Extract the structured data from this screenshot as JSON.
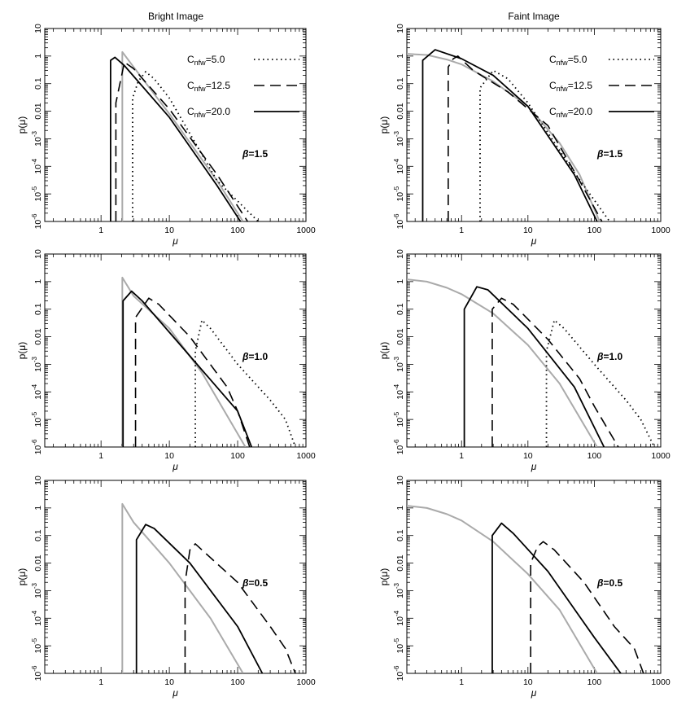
{
  "figure": {
    "column_titles": [
      "Bright Image",
      "Faint Image"
    ]
  },
  "legend": {
    "entries": [
      {
        "series": "c5",
        "prefix": "C",
        "subscript": "nfw",
        "value": "=5.0"
      },
      {
        "series": "c12",
        "prefix": "C",
        "subscript": "nfw",
        "value": "=12.5"
      },
      {
        "series": "c20",
        "prefix": "C",
        "subscript": "nfw",
        "value": "=20.0"
      }
    ]
  },
  "styles": {
    "c5": {
      "color": "#000000",
      "dash": "1.5,4",
      "width": 1.8
    },
    "c12": {
      "color": "#000000",
      "dash": "13,7",
      "width": 1.6
    },
    "c20": {
      "color": "#000000",
      "dash": "",
      "width": 1.8
    },
    "ref": {
      "color": "#aaaaaa",
      "dash": "",
      "width": 2
    }
  },
  "chart_data": [
    {
      "type": "line",
      "id": "bright-beta-1.5",
      "column": "Bright Image",
      "xlabel": "μ",
      "ylabel": "p(μ)",
      "xscale": "log",
      "yscale": "log",
      "xlim": [
        0.15,
        1000
      ],
      "ylim": [
        1e-06,
        10
      ],
      "xticks": [
        "1",
        "10",
        "100",
        "1000"
      ],
      "yticks": [
        "10",
        "1",
        "0.1",
        "0.01",
        "10^-3",
        "10^-4",
        "10^-5",
        "10^-6"
      ],
      "annotation": {
        "symbol": "β",
        "text": "=1.5"
      },
      "show_legend": true,
      "series": [
        {
          "name": "C_nfw=5.0",
          "style": "c5",
          "points": [
            [
              2.9,
              1e-06
            ],
            [
              2.9,
              0.03
            ],
            [
              3.5,
              0.12
            ],
            [
              4.5,
              0.27
            ],
            [
              6,
              0.15
            ],
            [
              10,
              0.03
            ],
            [
              50,
              3e-05
            ],
            [
              200,
              1e-06
            ]
          ]
        },
        {
          "name": "C_nfw=12.5",
          "style": "c12",
          "points": [
            [
              1.65,
              1e-06
            ],
            [
              1.65,
              0.02
            ],
            [
              2.2,
              0.6
            ],
            [
              3,
              0.35
            ],
            [
              10,
              0.012
            ],
            [
              50,
              5e-05
            ],
            [
              140,
              1e-06
            ]
          ]
        },
        {
          "name": "C_nfw=20.0",
          "style": "c20",
          "points": [
            [
              1.38,
              1e-06
            ],
            [
              1.38,
              0.7
            ],
            [
              1.6,
              0.9
            ],
            [
              2.2,
              0.45
            ],
            [
              10,
              0.006
            ],
            [
              50,
              2e-05
            ],
            [
              110,
              1e-06
            ]
          ]
        },
        {
          "name": "reference",
          "style": "ref",
          "points": [
            [
              2.05,
              1e-06
            ],
            [
              2.05,
              1.4
            ],
            [
              3,
              0.4
            ],
            [
              10,
              0.008
            ],
            [
              50,
              3e-05
            ],
            [
              120,
              1e-06
            ]
          ]
        }
      ]
    },
    {
      "type": "line",
      "id": "faint-beta-1.5",
      "column": "Faint Image",
      "xlabel": "μ",
      "ylabel": "p(μ)",
      "xscale": "log",
      "yscale": "log",
      "xlim": [
        0.15,
        1000
      ],
      "ylim": [
        1e-06,
        10
      ],
      "xticks": [
        "1",
        "10",
        "100",
        "1000"
      ],
      "yticks": [
        "10",
        "1",
        "0.1",
        "0.01",
        "10^-3",
        "10^-4",
        "10^-5",
        "10^-6"
      ],
      "annotation": {
        "symbol": "β",
        "text": "=1.5"
      },
      "show_legend": true,
      "series": [
        {
          "name": "C_nfw=5.0",
          "style": "c5",
          "points": [
            [
              1.9,
              1e-06
            ],
            [
              1.9,
              0.07
            ],
            [
              3,
              0.3
            ],
            [
              5,
              0.15
            ],
            [
              10,
              0.02
            ],
            [
              50,
              6e-05
            ],
            [
              170,
              1e-06
            ]
          ]
        },
        {
          "name": "C_nfw=12.5",
          "style": "c12",
          "points": [
            [
              0.63,
              1e-06
            ],
            [
              0.63,
              0.4
            ],
            [
              0.75,
              0.8
            ],
            [
              0.88,
              1.0
            ],
            [
              1.5,
              0.3
            ],
            [
              5,
              0.05
            ],
            [
              20,
              0.003
            ],
            [
              60,
              3e-05
            ],
            [
              130,
              1e-06
            ]
          ]
        },
        {
          "name": "C_nfw=20.0",
          "style": "c20",
          "points": [
            [
              0.26,
              1e-06
            ],
            [
              0.26,
              0.7
            ],
            [
              0.4,
              1.7
            ],
            [
              1,
              0.8
            ],
            [
              3,
              0.2
            ],
            [
              10,
              0.015
            ],
            [
              50,
              5e-05
            ],
            [
              110,
              1e-06
            ]
          ]
        },
        {
          "name": "reference",
          "style": "ref",
          "points": [
            [
              0.15,
              1.2
            ],
            [
              0.3,
              1.1
            ],
            [
              0.6,
              0.75
            ],
            [
              1,
              0.5
            ],
            [
              3,
              0.12
            ],
            [
              10,
              0.015
            ],
            [
              30,
              0.0007
            ],
            [
              60,
              5e-05
            ],
            [
              120,
              1e-06
            ]
          ]
        }
      ]
    },
    {
      "type": "line",
      "id": "bright-beta-1.0",
      "column": "Bright Image",
      "xlabel": "μ",
      "ylabel": "p(μ)",
      "xscale": "log",
      "yscale": "log",
      "xlim": [
        0.15,
        1000
      ],
      "ylim": [
        1e-06,
        10
      ],
      "xticks": [
        "1",
        "10",
        "100",
        "1000"
      ],
      "yticks": [
        "10",
        "1",
        "0.1",
        "0.01",
        "10^-3",
        "10^-4",
        "10^-5",
        "10^-6"
      ],
      "annotation": {
        "symbol": "β",
        "text": "=1.0"
      },
      "show_legend": false,
      "series": [
        {
          "name": "C_nfw=5.0",
          "style": "c5",
          "points": [
            [
              24,
              1e-06
            ],
            [
              24,
              0.003
            ],
            [
              30,
              0.04
            ],
            [
              40,
              0.02
            ],
            [
              100,
              0.001
            ],
            [
              300,
              5e-05
            ],
            [
              500,
              1e-05
            ],
            [
              700,
              1e-06
            ]
          ]
        },
        {
          "name": "C_nfw=12.5",
          "style": "c12",
          "points": [
            [
              3.2,
              1e-06
            ],
            [
              3.2,
              0.05
            ],
            [
              5,
              0.25
            ],
            [
              7,
              0.15
            ],
            [
              20,
              0.01
            ],
            [
              70,
              0.00015
            ],
            [
              100,
              2e-05
            ],
            [
              150,
              1e-06
            ]
          ]
        },
        {
          "name": "C_nfw=20.0",
          "style": "c20",
          "points": [
            [
              2.1,
              1e-06
            ],
            [
              2.1,
              0.2
            ],
            [
              2.8,
              0.45
            ],
            [
              4,
              0.2
            ],
            [
              20,
              0.002
            ],
            [
              100,
              2e-05
            ],
            [
              160,
              1e-06
            ]
          ]
        },
        {
          "name": "reference",
          "style": "ref",
          "points": [
            [
              2.05,
              1e-06
            ],
            [
              2.05,
              1.4
            ],
            [
              3,
              0.3
            ],
            [
              10,
              0.02
            ],
            [
              30,
              0.0005
            ],
            [
              130,
              1e-06
            ]
          ]
        }
      ]
    },
    {
      "type": "line",
      "id": "faint-beta-1.0",
      "column": "Faint Image",
      "xlabel": "μ",
      "ylabel": "p(μ)",
      "xscale": "log",
      "yscale": "log",
      "xlim": [
        0.15,
        1000
      ],
      "ylim": [
        1e-06,
        10
      ],
      "xticks": [
        "1",
        "10",
        "100",
        "1000"
      ],
      "yticks": [
        "10",
        "1",
        "0.1",
        "0.01",
        "10^-3",
        "10^-4",
        "10^-5",
        "10^-6"
      ],
      "annotation": {
        "symbol": "β",
        "text": "=1.0"
      },
      "show_legend": false,
      "series": [
        {
          "name": "C_nfw=5.0",
          "style": "c5",
          "points": [
            [
              19,
              1e-06
            ],
            [
              19,
              0.003
            ],
            [
              25,
              0.04
            ],
            [
              35,
              0.02
            ],
            [
              100,
              0.001
            ],
            [
              300,
              5e-05
            ],
            [
              500,
              1e-05
            ],
            [
              800,
              1e-06
            ]
          ]
        },
        {
          "name": "C_nfw=12.5",
          "style": "c12",
          "points": [
            [
              2.9,
              1e-06
            ],
            [
              2.9,
              0.1
            ],
            [
              4,
              0.25
            ],
            [
              6,
              0.15
            ],
            [
              20,
              0.008
            ],
            [
              60,
              0.0003
            ],
            [
              100,
              3e-05
            ],
            [
              230,
              1e-06
            ]
          ]
        },
        {
          "name": "C_nfw=20.0",
          "style": "c20",
          "points": [
            [
              1.1,
              1e-06
            ],
            [
              1.1,
              0.1
            ],
            [
              1.7,
              0.65
            ],
            [
              2.5,
              0.5
            ],
            [
              10,
              0.02
            ],
            [
              50,
              0.00015
            ],
            [
              140,
              1e-06
            ]
          ]
        },
        {
          "name": "reference",
          "style": "ref",
          "points": [
            [
              0.15,
              1.2
            ],
            [
              0.3,
              1.0
            ],
            [
              0.6,
              0.6
            ],
            [
              1,
              0.35
            ],
            [
              3,
              0.07
            ],
            [
              10,
              0.005
            ],
            [
              30,
              0.0002
            ],
            [
              110,
              1e-06
            ]
          ]
        }
      ]
    },
    {
      "type": "line",
      "id": "bright-beta-0.5",
      "column": "Bright Image",
      "xlabel": "μ",
      "ylabel": "p(μ)",
      "xscale": "log",
      "yscale": "log",
      "xlim": [
        0.15,
        1000
      ],
      "ylim": [
        1e-06,
        10
      ],
      "xticks": [
        "1",
        "10",
        "100",
        "1000"
      ],
      "yticks": [
        "10",
        "1",
        "0.1",
        "0.01",
        "10^-3",
        "10^-4",
        "10^-5",
        "10^-6"
      ],
      "annotation": {
        "symbol": "β",
        "text": "=0.5"
      },
      "show_legend": false,
      "series": [
        {
          "name": "C_nfw=12.5",
          "style": "c12",
          "points": [
            [
              17,
              1e-06
            ],
            [
              17,
              0.002
            ],
            [
              20,
              0.03
            ],
            [
              24,
              0.05
            ],
            [
              30,
              0.03
            ],
            [
              100,
              0.002
            ],
            [
              300,
              5e-05
            ],
            [
              500,
              8e-06
            ],
            [
              700,
              1e-06
            ]
          ]
        },
        {
          "name": "C_nfw=20.0",
          "style": "c20",
          "points": [
            [
              3.3,
              1e-06
            ],
            [
              3.3,
              0.07
            ],
            [
              4.5,
              0.25
            ],
            [
              6,
              0.18
            ],
            [
              20,
              0.01
            ],
            [
              100,
              5e-05
            ],
            [
              230,
              1e-06
            ]
          ]
        },
        {
          "name": "reference",
          "style": "ref",
          "points": [
            [
              2.05,
              1e-06
            ],
            [
              2.05,
              1.4
            ],
            [
              3,
              0.3
            ],
            [
              10,
              0.01
            ],
            [
              40,
              0.0001
            ],
            [
              120,
              1e-06
            ]
          ]
        }
      ]
    },
    {
      "type": "line",
      "id": "faint-beta-0.5",
      "column": "Faint Image",
      "xlabel": "μ",
      "ylabel": "p(μ)",
      "xscale": "log",
      "yscale": "log",
      "xlim": [
        0.15,
        1000
      ],
      "ylim": [
        1e-06,
        10
      ],
      "xticks": [
        "1",
        "10",
        "100",
        "1000"
      ],
      "yticks": [
        "10",
        "1",
        "0.1",
        "0.01",
        "10^-3",
        "10^-4",
        "10^-5",
        "10^-6"
      ],
      "annotation": {
        "symbol": "β",
        "text": "=0.5"
      },
      "show_legend": false,
      "series": [
        {
          "name": "C_nfw=12.5",
          "style": "c12",
          "points": [
            [
              11,
              1e-06
            ],
            [
              11,
              0.01
            ],
            [
              14,
              0.04
            ],
            [
              17,
              0.06
            ],
            [
              25,
              0.03
            ],
            [
              70,
              0.002
            ],
            [
              200,
              5e-05
            ],
            [
              400,
              8e-06
            ],
            [
              550,
              1e-06
            ]
          ]
        },
        {
          "name": "C_nfw=20.0",
          "style": "c20",
          "points": [
            [
              2.9,
              1e-06
            ],
            [
              2.9,
              0.1
            ],
            [
              4,
              0.28
            ],
            [
              6,
              0.12
            ],
            [
              20,
              0.005
            ],
            [
              100,
              2e-05
            ],
            [
              250,
              1e-06
            ]
          ]
        },
        {
          "name": "reference",
          "style": "ref",
          "points": [
            [
              0.15,
              1.2
            ],
            [
              0.3,
              1.0
            ],
            [
              0.6,
              0.6
            ],
            [
              1,
              0.35
            ],
            [
              3,
              0.06
            ],
            [
              10,
              0.004
            ],
            [
              30,
              0.0002
            ],
            [
              110,
              1e-06
            ]
          ]
        }
      ]
    }
  ]
}
